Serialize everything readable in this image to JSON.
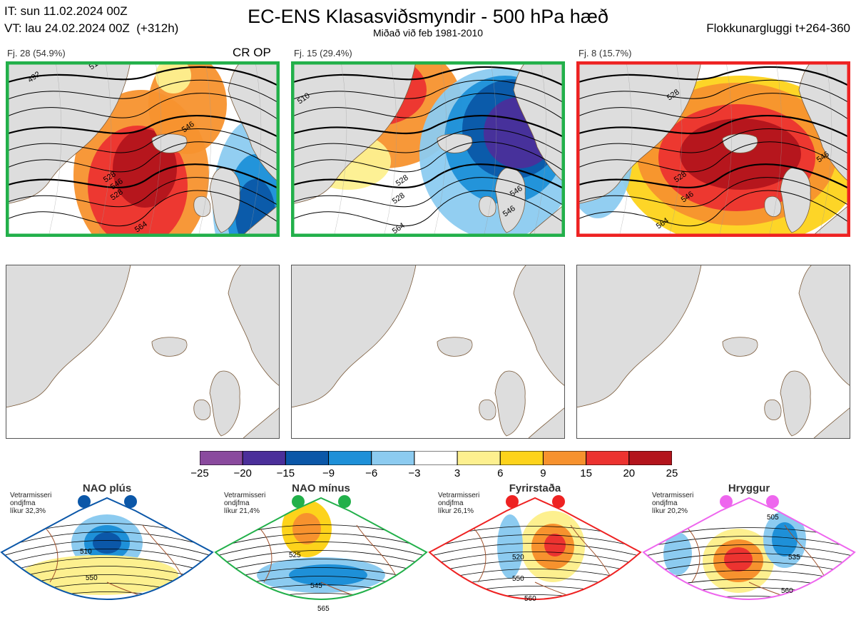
{
  "header": {
    "it_line": "IT: sun 11.02.2024 00Z",
    "vt_line": "VT: lau 24.02.2024 00Z  (+312h)",
    "title": "EC-ENS Klasasviðsmyndir - 500 hPa hæð",
    "subtitle": "Miðað við feb 1981-2010",
    "window": "Flokkunargluggi t+264-360"
  },
  "clusters": [
    {
      "label": "Fj. 28 (54.9%)",
      "tags": "CR OP",
      "border": "#22b04a",
      "contours": [
        "492",
        "510",
        "528",
        "546",
        "528",
        "546",
        "564"
      ]
    },
    {
      "label": "Fj. 15 (29.4%)",
      "tags": "",
      "border": "#22b04a",
      "contours": [
        "510",
        "528",
        "546",
        "528",
        "546",
        "564"
      ]
    },
    {
      "label": "Fj. 8 (15.7%)",
      "tags": "",
      "border": "#ee2222",
      "contours": [
        "528",
        "546",
        "528",
        "546",
        "564"
      ]
    }
  ],
  "scale": {
    "colors": [
      "#8a4a9e",
      "#4b2f9a",
      "#0b57a8",
      "#1e90d8",
      "#8ccbf0",
      "#ffffff",
      "#fdf08f",
      "#fdd31b",
      "#f7922e",
      "#ec3330",
      "#b3141c"
    ],
    "labels": [
      "−25",
      "−20",
      "−15",
      "−9",
      "−6",
      "−3",
      "3",
      "6",
      "9",
      "15",
      "20",
      "25"
    ]
  },
  "regimes": [
    {
      "name": "NAO plús",
      "info1": "Vetrarmisseri",
      "info2": "ondjfma",
      "info3": "líkur 32,3%",
      "color": "#0b57a8",
      "contours": [
        "510",
        "550"
      ]
    },
    {
      "name": "NAO mínus",
      "info1": "Vetrarmisseri",
      "info2": "ondjfma",
      "info3": "líkur 21,4%",
      "color": "#22b04a",
      "contours": [
        "525",
        "545",
        "565"
      ]
    },
    {
      "name": "Fyrirstaða",
      "info1": "Vetrarmisseri",
      "info2": "ondjfma",
      "info3": "líkur 26,1%",
      "color": "#ee2222",
      "contours": [
        "520",
        "550",
        "560"
      ]
    },
    {
      "name": "Hryggur",
      "info1": "Vetrarmisseri",
      "info2": "ondjfma",
      "info3": "líkur 20,2%",
      "color": "#ee66ee",
      "contours": [
        "505",
        "535",
        "560"
      ]
    }
  ]
}
